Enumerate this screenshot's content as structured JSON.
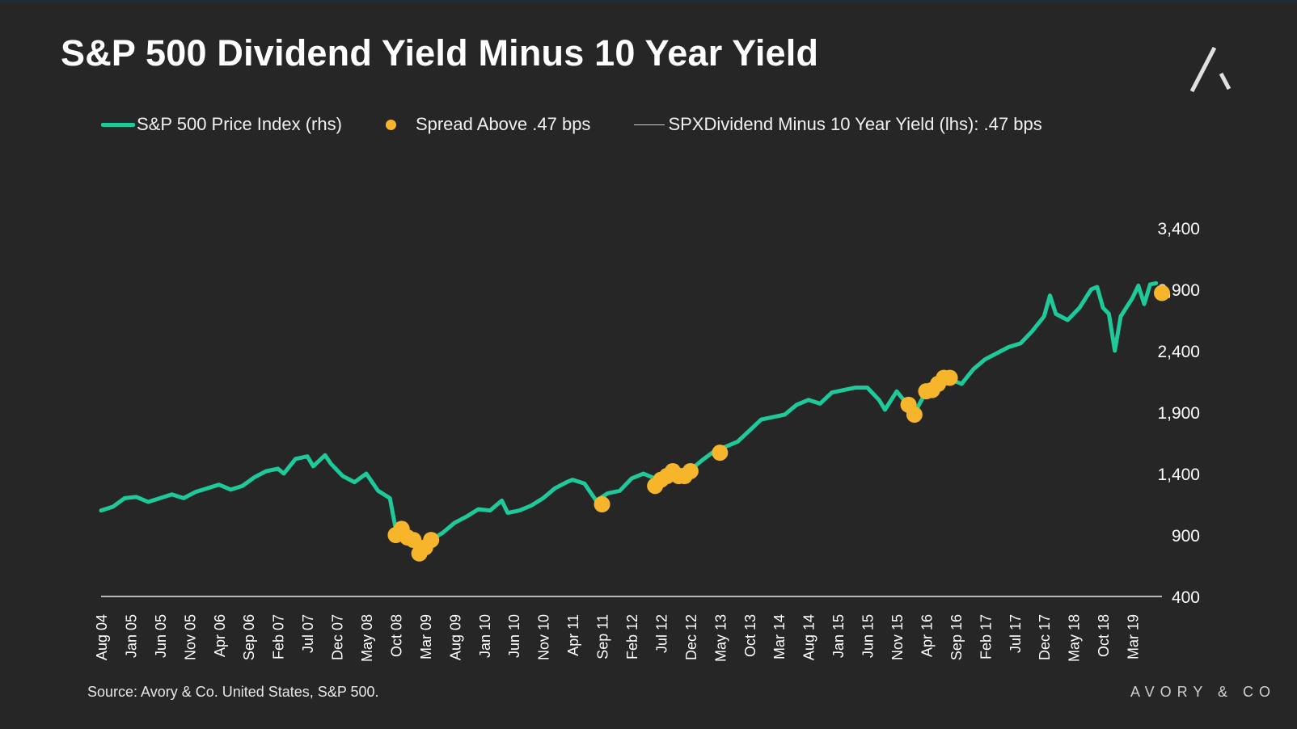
{
  "header": {
    "title": "S&P 500 Dividend Yield Minus 10 Year Yield"
  },
  "legend": {
    "series_price": "S&P 500 Price Index (rhs)",
    "series_spread": "Spread Above .47 bps",
    "series_diff": "SPXDividend Minus 10 Year Yield (lhs): .47 bps"
  },
  "footer": {
    "source": "Source: Avory & Co. United States, S&P 500.",
    "brand": "AVORY & CO"
  },
  "colors": {
    "background": "#262626",
    "price": "#1ec99a",
    "spread": "#f7b52c",
    "axis": "#e8e8e8"
  },
  "chart_data": {
    "type": "line",
    "title": "S&P 500 Dividend Yield Minus 10 Year Yield",
    "xlabel": "",
    "ylabel": "",
    "y_axis_side": "right",
    "ylim": [
      400,
      3400
    ],
    "yticks": [
      3400,
      2900,
      2400,
      1900,
      1400,
      900,
      400
    ],
    "ytick_labels": [
      "3,400",
      "2,900",
      "2,400",
      "1,900",
      "1,400",
      "900",
      "400"
    ],
    "xlim": [
      "2004-08",
      "2019-08"
    ],
    "xticks": [
      "2004-08",
      "2005-01",
      "2005-06",
      "2005-11",
      "2006-04",
      "2006-09",
      "2007-02",
      "2007-07",
      "2007-12",
      "2008-05",
      "2008-10",
      "2009-03",
      "2009-08",
      "2010-01",
      "2010-06",
      "2010-11",
      "2011-04",
      "2011-09",
      "2012-02",
      "2012-07",
      "2012-12",
      "2013-05",
      "2013-10",
      "2014-03",
      "2014-08",
      "2015-01",
      "2015-06",
      "2015-11",
      "2016-04",
      "2016-09",
      "2017-02",
      "2017-07",
      "2017-12",
      "2018-05",
      "2018-10",
      "2019-03"
    ],
    "xtick_labels": [
      "Aug 04",
      "Jan 05",
      "Jun 05",
      "Nov 05",
      "Apr 06",
      "Sep 06",
      "Feb 07",
      "Jul 07",
      "Dec 07",
      "May 08",
      "Oct 08",
      "Mar 09",
      "Aug 09",
      "Jan 10",
      "Jun 10",
      "Nov 10",
      "Apr 11",
      "Sep 11",
      "Feb 12",
      "Jul 12",
      "Dec 12",
      "May 13",
      "Oct 13",
      "Mar 14",
      "Aug 14",
      "Jan 15",
      "Jun 15",
      "Nov 15",
      "Apr 16",
      "Sep 16",
      "Feb 17",
      "Jul 17",
      "Dec 17",
      "May 18",
      "Oct 18",
      "Mar 19"
    ],
    "legend_position": "top",
    "grid": false,
    "series": [
      {
        "name": "S&P 500 Price Index (rhs)",
        "type": "line",
        "x": [
          "2004-08",
          "2004-10",
          "2004-12",
          "2005-02",
          "2005-04",
          "2005-06",
          "2005-08",
          "2005-10",
          "2005-12",
          "2006-02",
          "2006-04",
          "2006-06",
          "2006-08",
          "2006-10",
          "2006-12",
          "2007-02",
          "2007-03",
          "2007-05",
          "2007-07",
          "2007-08",
          "2007-10",
          "2007-11",
          "2008-01",
          "2008-03",
          "2008-05",
          "2008-07",
          "2008-09",
          "2008-10",
          "2008-11",
          "2008-12",
          "2009-01",
          "2009-02",
          "2009-03",
          "2009-04",
          "2009-06",
          "2009-08",
          "2009-10",
          "2009-12",
          "2010-02",
          "2010-04",
          "2010-05",
          "2010-07",
          "2010-09",
          "2010-11",
          "2011-01",
          "2011-03",
          "2011-04",
          "2011-06",
          "2011-08",
          "2011-10",
          "2011-12",
          "2012-02",
          "2012-04",
          "2012-06",
          "2012-08",
          "2012-10",
          "2012-12",
          "2013-02",
          "2013-04",
          "2013-06",
          "2013-08",
          "2013-10",
          "2013-12",
          "2014-02",
          "2014-04",
          "2014-06",
          "2014-08",
          "2014-10",
          "2014-12",
          "2015-02",
          "2015-04",
          "2015-06",
          "2015-08",
          "2015-09",
          "2015-11",
          "2016-01",
          "2016-02",
          "2016-04",
          "2016-06",
          "2016-08",
          "2016-10",
          "2016-12",
          "2017-02",
          "2017-04",
          "2017-06",
          "2017-08",
          "2017-10",
          "2017-12",
          "2018-01",
          "2018-02",
          "2018-04",
          "2018-06",
          "2018-08",
          "2018-09",
          "2018-10",
          "2018-11",
          "2018-12",
          "2019-01",
          "2019-03",
          "2019-04",
          "2019-05",
          "2019-06",
          "2019-07"
        ],
        "y": [
          1100,
          1130,
          1200,
          1210,
          1170,
          1200,
          1230,
          1200,
          1250,
          1280,
          1310,
          1270,
          1300,
          1370,
          1420,
          1440,
          1400,
          1520,
          1540,
          1460,
          1550,
          1480,
          1380,
          1330,
          1400,
          1260,
          1200,
          950,
          880,
          900,
          840,
          750,
          800,
          860,
          920,
          1000,
          1050,
          1110,
          1100,
          1180,
          1080,
          1100,
          1140,
          1200,
          1280,
          1330,
          1350,
          1320,
          1180,
          1240,
          1260,
          1360,
          1400,
          1360,
          1420,
          1430,
          1430,
          1510,
          1580,
          1620,
          1660,
          1750,
          1840,
          1860,
          1880,
          1960,
          2000,
          1970,
          2060,
          2080,
          2100,
          2100,
          2000,
          1920,
          2070,
          1950,
          1890,
          2070,
          2080,
          2170,
          2130,
          2250,
          2330,
          2380,
          2430,
          2460,
          2560,
          2680,
          2850,
          2700,
          2650,
          2750,
          2900,
          2920,
          2750,
          2700,
          2400,
          2680,
          2830,
          2930,
          2780,
          2940,
          2950
        ]
      },
      {
        "name": "Spread Above .47 bps",
        "type": "scatter",
        "x": [
          "2008-10",
          "2008-11",
          "2008-12",
          "2009-01",
          "2009-02",
          "2009-03",
          "2009-04",
          "2011-09",
          "2012-06",
          "2012-07",
          "2012-08",
          "2012-09",
          "2012-10",
          "2012-11",
          "2012-12",
          "2013-05",
          "2016-01",
          "2016-02",
          "2016-04",
          "2016-05",
          "2016-06",
          "2016-07",
          "2016-08",
          "2019-08"
        ],
        "y": [
          900,
          950,
          880,
          860,
          750,
          800,
          860,
          1150,
          1300,
          1350,
          1380,
          1420,
          1380,
          1380,
          1420,
          1570,
          1960,
          1880,
          2070,
          2080,
          2130,
          2180,
          2180,
          2870
        ]
      },
      {
        "name": "SPXDividend Minus 10 Year Yield (lhs): .47 bps",
        "type": "line",
        "x": [
          "2004-08",
          "2019-08"
        ],
        "y": [
          400,
          400
        ]
      }
    ]
  }
}
